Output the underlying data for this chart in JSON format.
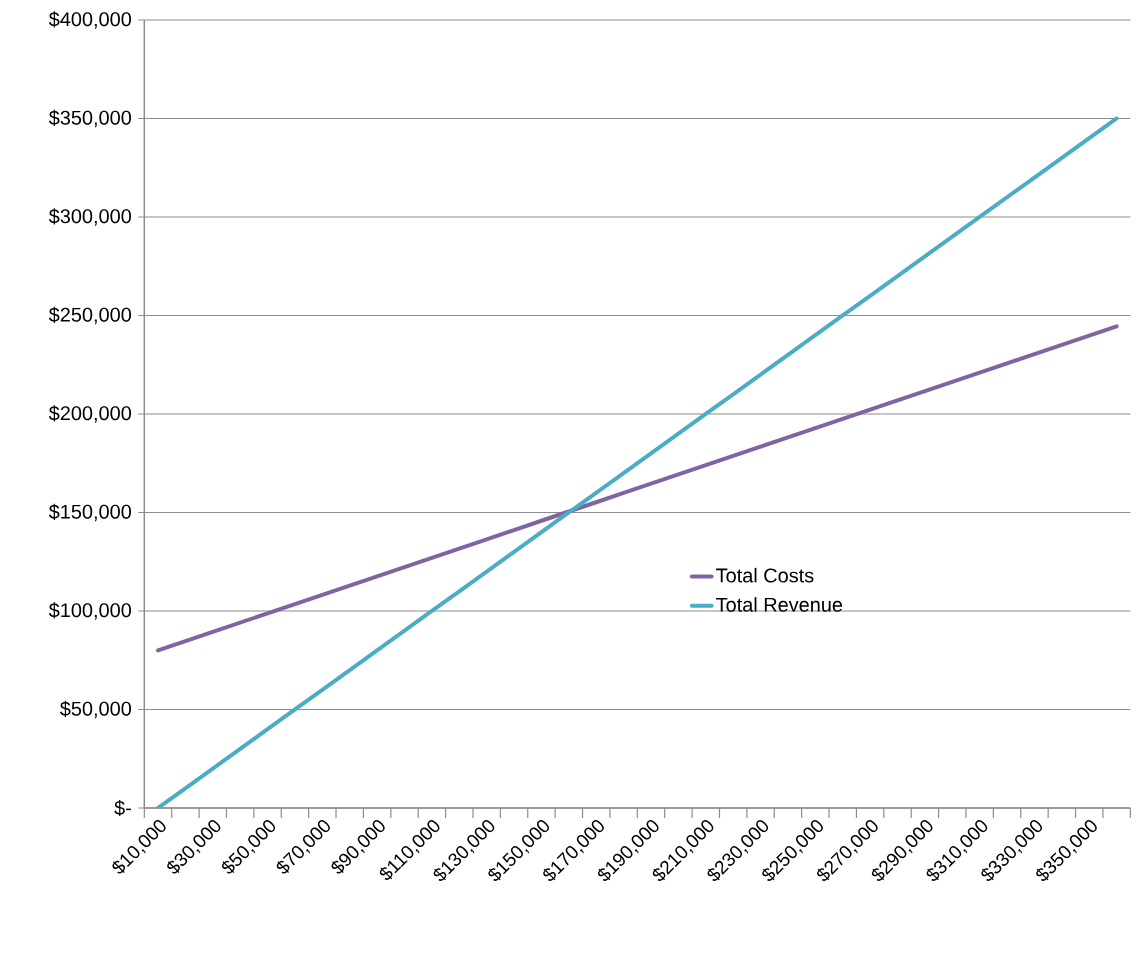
{
  "chart_data": {
    "type": "line",
    "categories": [
      "$10,000",
      null,
      "$30,000",
      null,
      "$50,000",
      null,
      "$70,000",
      null,
      "$90,000",
      null,
      "$110,000",
      null,
      "$130,000",
      null,
      "$150,000",
      null,
      "$170,000",
      null,
      "$190,000",
      null,
      "$210,000",
      null,
      "$230,000",
      null,
      "$250,000",
      null,
      "$270,000",
      null,
      "$290,000",
      null,
      "$310,000",
      null,
      "$330,000",
      null,
      "$350,000",
      null
    ],
    "series": [
      {
        "name": "Total Costs",
        "color": "#8064a2",
        "values": [
          80000,
          84700,
          89400,
          94100,
          98800,
          103500,
          108200,
          112900,
          117600,
          122300,
          127000,
          131700,
          136400,
          141100,
          145800,
          150500,
          155200,
          159900,
          164600,
          169300,
          174000,
          178700,
          183400,
          188100,
          192800,
          197500,
          202200,
          206900,
          211600,
          216300,
          221000,
          225700,
          230400,
          235100,
          239800,
          244500
        ]
      },
      {
        "name": "Total Revenue",
        "color": "#4bacc6",
        "values": [
          0,
          10000,
          20000,
          30000,
          40000,
          50000,
          60000,
          70000,
          80000,
          90000,
          100000,
          110000,
          120000,
          130000,
          140000,
          150000,
          160000,
          170000,
          180000,
          190000,
          200000,
          210000,
          220000,
          230000,
          240000,
          250000,
          260000,
          270000,
          280000,
          290000,
          300000,
          310000,
          320000,
          330000,
          340000,
          350000
        ]
      }
    ],
    "ylim": [
      0,
      400000
    ],
    "yticks": [
      {
        "value": 0,
        "label": "$-"
      },
      {
        "value": 50000,
        "label": "$50,000"
      },
      {
        "value": 100000,
        "label": "$100,000"
      },
      {
        "value": 150000,
        "label": "$150,000"
      },
      {
        "value": 200000,
        "label": "$200,000"
      },
      {
        "value": 250000,
        "label": "$250,000"
      },
      {
        "value": 300000,
        "label": "$300,000"
      },
      {
        "value": 350000,
        "label": "$350,000"
      },
      {
        "value": 400000,
        "label": "$400,000"
      }
    ],
    "grid": "y",
    "legend": "right",
    "marker": "none",
    "line_style": "solid"
  }
}
